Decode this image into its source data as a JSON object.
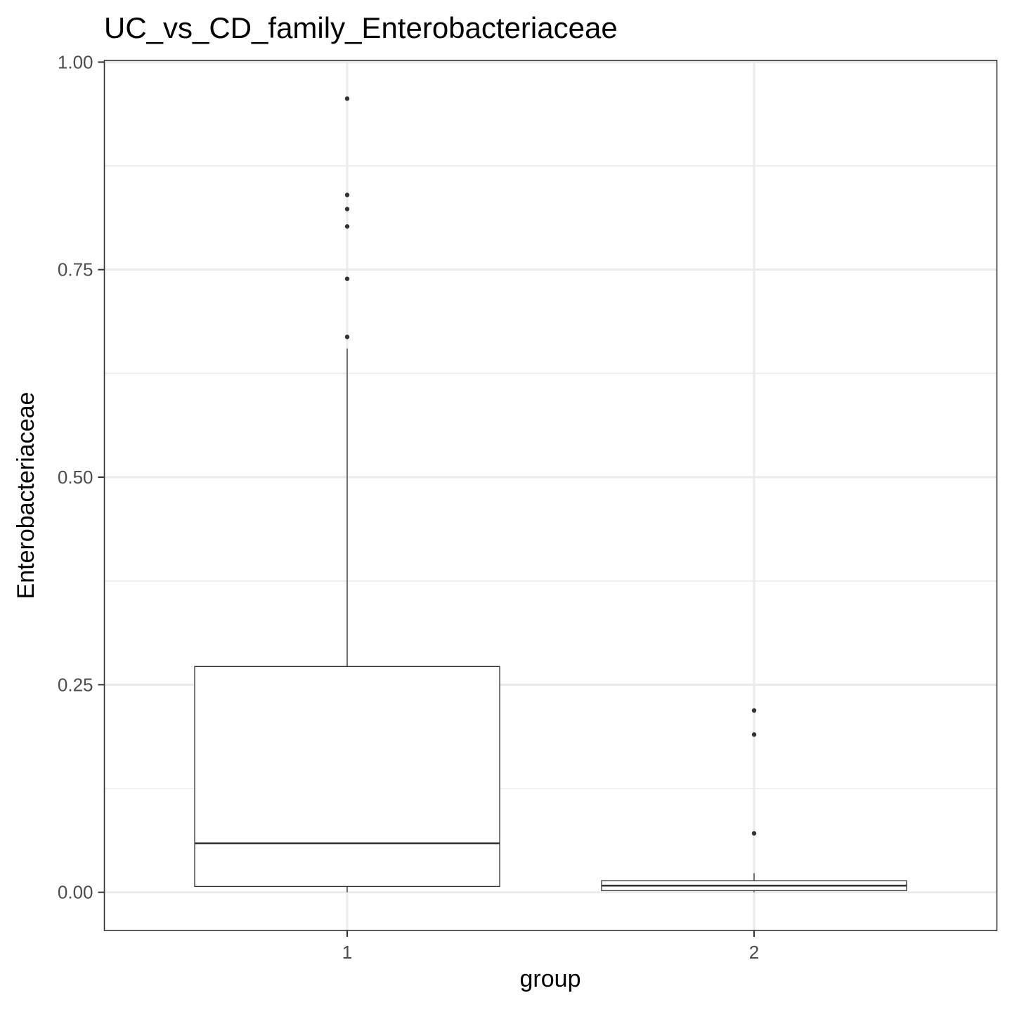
{
  "chart_data": {
    "type": "boxplot",
    "title": "UC_vs_CD_family_Enterobacteriaceae",
    "xlabel": "group",
    "ylabel": "Enterobacteriaceae",
    "categories": [
      "1",
      "2"
    ],
    "ylim": [
      -0.046,
      1.002
    ],
    "y_ticks": [
      0.0,
      0.25,
      0.5,
      0.75,
      1.0
    ],
    "y_tick_labels": [
      "0.00",
      "0.25",
      "0.50",
      "0.75",
      "1.00"
    ],
    "y_minor_ticks": [
      0.125,
      0.375,
      0.625,
      0.875
    ],
    "grid": true,
    "boxes": [
      {
        "category": "1",
        "whisker_low": 0.0,
        "q1": 0.007,
        "median": 0.059,
        "q3": 0.272,
        "whisker_high": 0.655,
        "outliers": [
          0.956,
          0.84,
          0.823,
          0.802,
          0.739,
          0.669
        ]
      },
      {
        "category": "2",
        "whisker_low": 0.0,
        "q1": 0.002,
        "median": 0.008,
        "q3": 0.014,
        "whisker_high": 0.023,
        "outliers": [
          0.219,
          0.19,
          0.071
        ]
      }
    ],
    "colors": {
      "box_stroke": "#333333",
      "box_fill": "#ffffff",
      "grid": "#ebebeb",
      "tick_text": "#4d4d4d"
    }
  }
}
